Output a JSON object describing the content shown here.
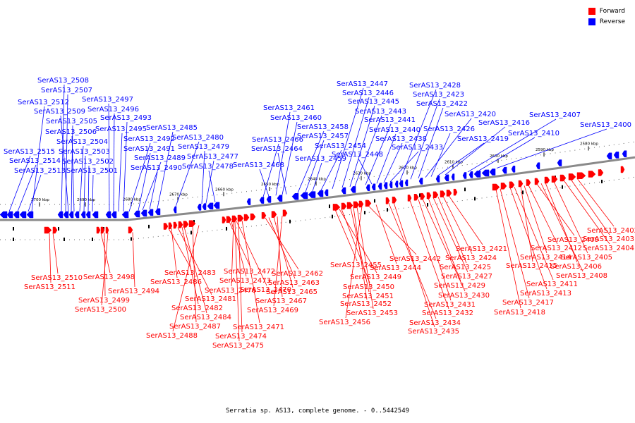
{
  "legend": {
    "forward": {
      "label": "Forward",
      "color": "#ff0000"
    },
    "reverse": {
      "label": "Reverse",
      "color": "#0000ff"
    }
  },
  "caption": "Serratia sp. AS13, complete genome. - 0..5442549",
  "colors": {
    "backbone": "#8a8a8a",
    "scale": "#000000"
  },
  "scale_labels": [
    "2700 kbp",
    "2690 kbp",
    "2680 kbp",
    "2670 kbp",
    "2660 kbp",
    "2650 kbp",
    "2640 kbp",
    "2630 kbp",
    "2620 kbp",
    "2610 kbp",
    "2600 kbp",
    "2590 kbp",
    "2580 kbp"
  ],
  "reverse_genes": [
    "SerAS13_2515",
    "SerAS13_2514",
    "SerAS13_2513",
    "SerAS13_2512",
    "SerAS13_2508",
    "SerAS13_2507",
    "SerAS13_2509",
    "SerAS13_2505",
    "SerAS13_2506",
    "SerAS13_2504",
    "SerAS13_2503",
    "SerAS13_2502",
    "SerAS13_2501",
    "SerAS13_2497",
    "SerAS13_2496",
    "SerAS13_2495",
    "SerAS13_2493",
    "SerAS13_2492",
    "SerAS13_2491",
    "SerAS13_2489",
    "SerAS13_2490",
    "SerAS13_2485",
    "SerAS13_2480",
    "SerAS13_2479",
    "SerAS13_2477",
    "SerAS13_2478",
    "SerAS13_2466",
    "SerAS13_2468",
    "SerAS13_2461",
    "SerAS13_2460",
    "SerAS13_2464",
    "SerAS13_2458",
    "SerAS13_2457",
    "SerAS13_2459",
    "SerAS13_2454",
    "SerAS13_2447",
    "SerAS13_2446",
    "SerAS13_2445",
    "SerAS13_2443",
    "SerAS13_2441",
    "SerAS13_2448",
    "SerAS13_2440",
    "SerAS13_2438",
    "SerAS13_2433",
    "SerAS13_2428",
    "SerAS13_2423",
    "SerAS13_2422",
    "SerAS13_2420",
    "SerAS13_2426",
    "SerAS13_2419",
    "SerAS13_2416",
    "SerAS13_2407",
    "SerAS13_2410",
    "SerAS13_2400"
  ],
  "forward_genes": [
    "SerAS13_2510",
    "SerAS13_2511",
    "SerAS13_2498",
    "SerAS13_2499",
    "SerAS13_2500",
    "SerAS13_2494",
    "SerAS13_2483",
    "SerAS13_2486",
    "SerAS13_2481",
    "SerAS13_2482",
    "SerAS13_2484",
    "SerAS13_2487",
    "SerAS13_2488",
    "SerAS13_2472",
    "SerAS13_2473",
    "SerAS13_2476",
    "SerAS13_2470",
    "SerAS13_2471",
    "SerAS13_2474",
    "SerAS13_2475",
    "SerAS13_2462",
    "SerAS13_2463",
    "SerAS13_2465",
    "SerAS13_2467",
    "SerAS13_2469",
    "SerAS13_2455",
    "SerAS13_2449",
    "SerAS13_2450",
    "SerAS13_2451",
    "SerAS13_2452",
    "SerAS13_2453",
    "SerAS13_2456",
    "SerAS13_2442",
    "SerAS13_2444",
    "SerAS13_2434",
    "SerAS13_2435",
    "SerAS13_2432",
    "SerAS13_2431",
    "SerAS13_2430",
    "SerAS13_2429",
    "SerAS13_2427",
    "SerAS13_2425",
    "SerAS13_2424",
    "SerAS13_2421",
    "SerAS13_2418",
    "SerAS13_2417",
    "SerAS13_2413",
    "SerAS13_2411",
    "SerAS13_2415",
    "SerAS13_2414",
    "SerAS13_2412",
    "SerAS13_2409",
    "SerAS13_2408",
    "SerAS13_2406",
    "SerAS13_2405",
    "SerAS13_2404",
    "SerAS13_2403",
    "SerAS13_2402"
  ]
}
